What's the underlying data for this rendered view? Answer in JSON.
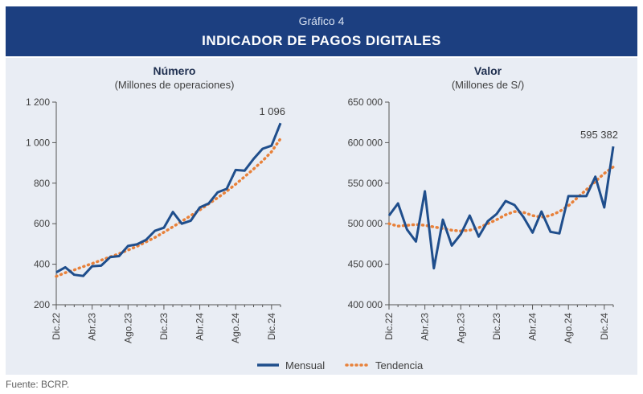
{
  "header": {
    "graphic_label": "Gráfico 4",
    "title": "INDICADOR DE PAGOS DIGITALES"
  },
  "legend": {
    "monthly": "Mensual",
    "trend": "Tendencia"
  },
  "source": "Fuente: BCRP.",
  "colors": {
    "header_bg": "#1c3f80",
    "panel_bg": "#e9edf4",
    "monthly": "#1f4e8c",
    "trend": "#e8813a"
  },
  "chart_data": [
    {
      "type": "line",
      "title": "Número",
      "subtitle": "(Millones de operaciones)",
      "ylim": [
        200,
        1200
      ],
      "yticks": [
        200,
        400,
        600,
        800,
        1000,
        1200
      ],
      "ytick_labels": [
        "200",
        "400",
        "600",
        "800",
        "1 000",
        "1 200"
      ],
      "xtick_labels": [
        {
          "index": 0,
          "label": "Dic.22"
        },
        {
          "index": 4,
          "label": "Abr.23"
        },
        {
          "index": 8,
          "label": "Ago.23"
        },
        {
          "index": 12,
          "label": "Dic.23"
        },
        {
          "index": 16,
          "label": "Abr.24"
        },
        {
          "index": 20,
          "label": "Ago.24"
        },
        {
          "index": 24,
          "label": "Dic.24"
        }
      ],
      "annotation": "1 096",
      "series": [
        {
          "name": "Mensual",
          "values": [
            360,
            385,
            348,
            342,
            390,
            393,
            435,
            440,
            490,
            498,
            520,
            565,
            580,
            658,
            600,
            615,
            680,
            700,
            755,
            772,
            865,
            862,
            920,
            970,
            985,
            1096
          ]
        },
        {
          "name": "Tendencia",
          "values": [
            340,
            358,
            372,
            388,
            403,
            420,
            436,
            452,
            470,
            488,
            510,
            532,
            558,
            585,
            612,
            640,
            668,
            698,
            728,
            760,
            795,
            832,
            870,
            910,
            955,
            1020
          ]
        }
      ]
    },
    {
      "type": "line",
      "title": "Valor",
      "subtitle": "(Millones de S/)",
      "ylim": [
        400000,
        650000
      ],
      "yticks": [
        400000,
        450000,
        500000,
        550000,
        600000,
        650000
      ],
      "ytick_labels": [
        "400 000",
        "450 000",
        "500 000",
        "550 000",
        "600 000",
        "650 000"
      ],
      "xtick_labels": [
        {
          "index": 0,
          "label": "Dic.22"
        },
        {
          "index": 4,
          "label": "Abr.23"
        },
        {
          "index": 8,
          "label": "Ago.23"
        },
        {
          "index": 12,
          "label": "Dic.23"
        },
        {
          "index": 16,
          "label": "Abr.24"
        },
        {
          "index": 20,
          "label": "Ago.24"
        },
        {
          "index": 24,
          "label": "Dic.24"
        }
      ],
      "annotation": "595 382",
      "series": [
        {
          "name": "Mensual",
          "values": [
            510000,
            525000,
            493000,
            478000,
            540000,
            445000,
            505000,
            473000,
            487000,
            510000,
            484000,
            503000,
            512000,
            528000,
            523000,
            508000,
            489000,
            515000,
            490000,
            488000,
            534000,
            534000,
            534000,
            558000,
            520000,
            595382
          ]
        },
        {
          "name": "Tendencia",
          "values": [
            500000,
            497000,
            498000,
            499000,
            498000,
            496000,
            494000,
            492000,
            491000,
            492000,
            495000,
            500000,
            505000,
            511000,
            515000,
            514000,
            510000,
            508000,
            510000,
            515000,
            522000,
            532000,
            542000,
            552000,
            562000,
            570000
          ]
        }
      ]
    }
  ]
}
